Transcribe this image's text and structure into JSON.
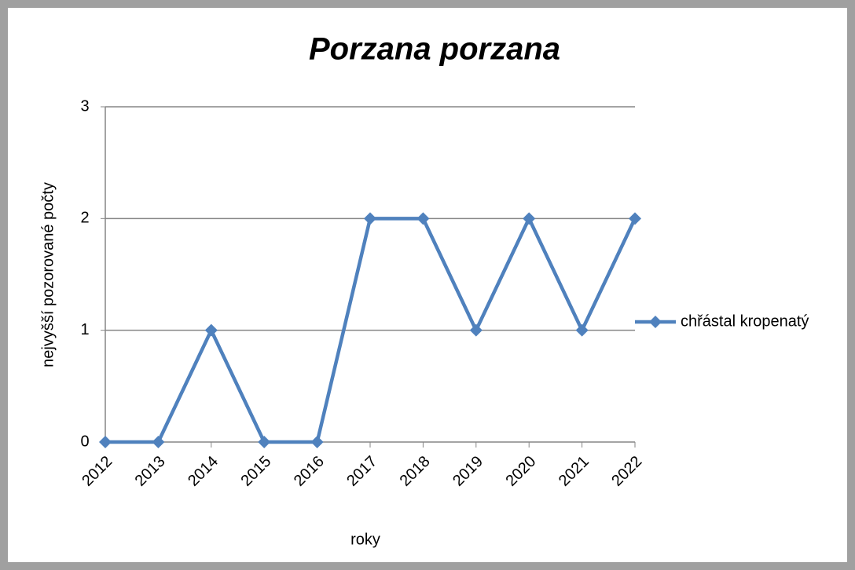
{
  "chart_data": {
    "type": "line",
    "title": "Porzana porzana",
    "x_label": "roky",
    "y_label": "nejvyšší pozorované počty",
    "categories": [
      "2012",
      "2013",
      "2014",
      "2015",
      "2016",
      "2017",
      "2018",
      "2019",
      "2020",
      "2021",
      "2022"
    ],
    "series": [
      {
        "name": "chřástal kropenatý",
        "color": "#4f81bd",
        "values": [
          0,
          0,
          1,
          0,
          0,
          2,
          2,
          1,
          2,
          1,
          2
        ]
      }
    ],
    "ylim": [
      0,
      3
    ],
    "yticks": [
      0,
      1,
      2,
      3
    ],
    "grid": true,
    "legend": "right"
  }
}
